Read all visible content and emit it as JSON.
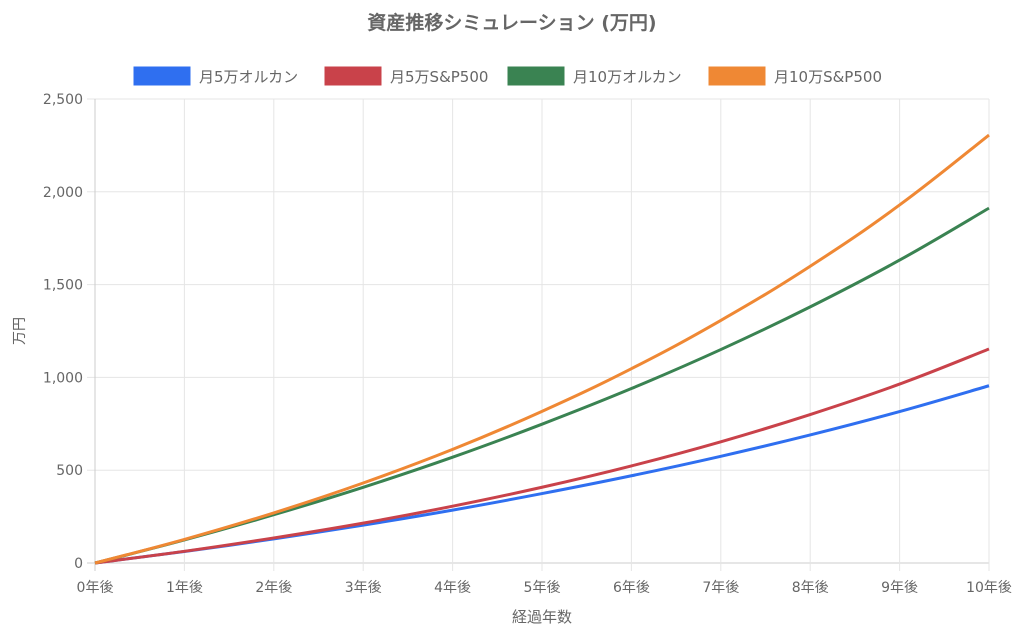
{
  "chart_data": {
    "type": "line",
    "title": "資産推移シミュレーション (万円)",
    "xlabel": "経過年数",
    "ylabel": "万円",
    "categories": [
      "0年後",
      "1年後",
      "2年後",
      "3年後",
      "4年後",
      "5年後",
      "6年後",
      "7年後",
      "8年後",
      "9年後",
      "10年後"
    ],
    "ylim": [
      0,
      2500
    ],
    "yticks": [
      0,
      500,
      1000,
      1500,
      2000,
      2500
    ],
    "ytick_labels": [
      "0",
      "500",
      "1,000",
      "1,500",
      "2,000",
      "2,500"
    ],
    "grid": true,
    "legend_position": "top",
    "series": [
      {
        "name": "月5万オルカン",
        "color": "#2f6ff0",
        "values": [
          0,
          62,
          130,
          204,
          285,
          374,
          470,
          575,
          690,
          816,
          955
        ]
      },
      {
        "name": "月5万S&P500",
        "color": "#c9424a",
        "values": [
          0,
          63,
          135,
          215,
          306,
          408,
          523,
          653,
          800,
          964,
          1153
        ]
      },
      {
        "name": "月10万オルカン",
        "color": "#3a8352",
        "values": [
          0,
          124,
          260,
          408,
          570,
          748,
          940,
          1150,
          1380,
          1632,
          1912
        ]
      },
      {
        "name": "月10万S&P500",
        "color": "#ef8834",
        "values": [
          0,
          127,
          270,
          431,
          612,
          817,
          1047,
          1307,
          1599,
          1929,
          2306
        ]
      }
    ]
  }
}
